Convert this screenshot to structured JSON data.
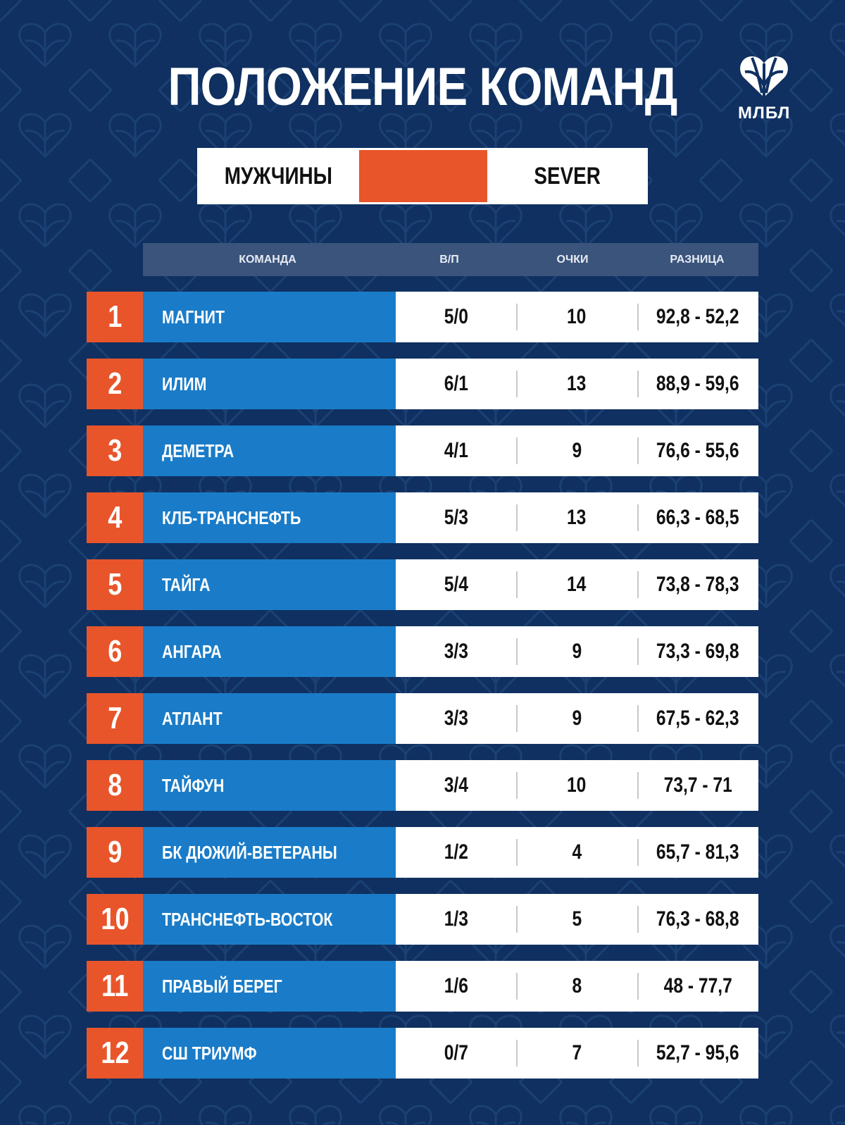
{
  "title": "ПОЛОЖЕНИЕ КОМАНД",
  "logo": {
    "text": "МЛБЛ",
    "icon": "heart-basketball-icon"
  },
  "filter": {
    "left_label": "МУЖЧИНЫ",
    "middle_label": "",
    "right_label": "SEVER",
    "accent_color": "#e8552a"
  },
  "headers": {
    "team": "КОМАНДА",
    "wl": "В/П",
    "points": "ОЧКИ",
    "diff": "РАЗНИЦА"
  },
  "colors": {
    "background": "#0f3060",
    "rank": "#e8552a",
    "team": "#1a7cc8",
    "header": "#3a547c"
  },
  "rows": [
    {
      "rank": "1",
      "team": "МАГНИТ",
      "wl": "5/0",
      "points": "10",
      "diff": "92,8 - 52,2"
    },
    {
      "rank": "2",
      "team": "ИЛИМ",
      "wl": "6/1",
      "points": "13",
      "diff": "88,9 - 59,6"
    },
    {
      "rank": "3",
      "team": "ДЕМЕТРА",
      "wl": "4/1",
      "points": "9",
      "diff": "76,6 - 55,6"
    },
    {
      "rank": "4",
      "team": "КЛБ-ТРАНСНЕФТЬ",
      "wl": "5/3",
      "points": "13",
      "diff": "66,3 - 68,5"
    },
    {
      "rank": "5",
      "team": "ТАЙГА",
      "wl": "5/4",
      "points": "14",
      "diff": "73,8 - 78,3"
    },
    {
      "rank": "6",
      "team": "АНГАРА",
      "wl": "3/3",
      "points": "9",
      "diff": "73,3 - 69,8"
    },
    {
      "rank": "7",
      "team": "АТЛАНТ",
      "wl": "3/3",
      "points": "9",
      "diff": "67,5 - 62,3"
    },
    {
      "rank": "8",
      "team": "ТАЙФУН",
      "wl": "3/4",
      "points": "10",
      "diff": "73,7 - 71"
    },
    {
      "rank": "9",
      "team": "БК ДЮЖИЙ-ВЕТЕРАНЫ",
      "wl": "1/2",
      "points": "4",
      "diff": "65,7 - 81,3"
    },
    {
      "rank": "10",
      "team": "ТРАНСНЕФТЬ-ВОСТОК",
      "wl": "1/3",
      "points": "5",
      "diff": "76,3 - 68,8"
    },
    {
      "rank": "11",
      "team": "ПРАВЫЙ БЕРЕГ",
      "wl": "1/6",
      "points": "8",
      "diff": "48 - 77,7"
    },
    {
      "rank": "12",
      "team": "СШ ТРИУМФ",
      "wl": "0/7",
      "points": "7",
      "diff": "52,7 - 95,6"
    }
  ]
}
